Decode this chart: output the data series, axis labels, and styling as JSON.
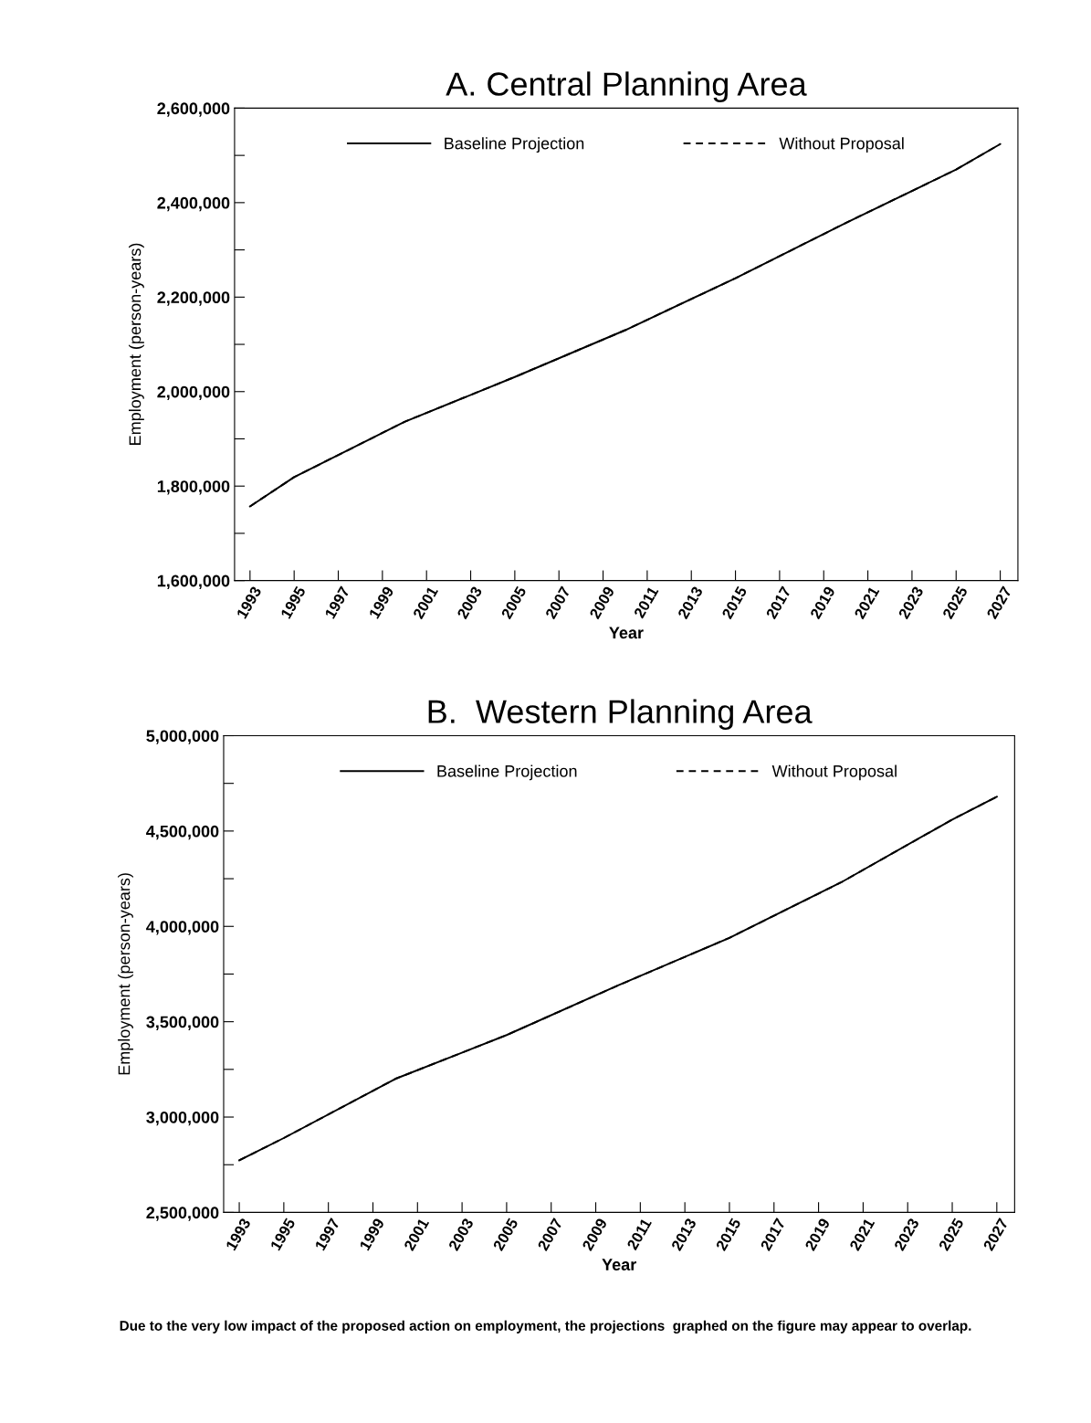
{
  "chart_data": [
    {
      "type": "line",
      "title": "A. Central Planning Area",
      "xlabel": "Year",
      "ylabel": "Employment (person-years)",
      "x": [
        1993,
        1995,
        2000,
        2005,
        2010,
        2015,
        2020,
        2025,
        2027
      ],
      "series": [
        {
          "name": "Baseline Projection",
          "color": "#000000",
          "line_style": "solid",
          "values": [
            1757000,
            1819000,
            1936000,
            2031000,
            2130000,
            2240000,
            2357000,
            2470000,
            2524000
          ]
        },
        {
          "name": "Without Proposal",
          "color": "#000000",
          "line_style": "dashed",
          "values": [
            1757000,
            1819000,
            1936000,
            2031000,
            2130000,
            2240000,
            2357000,
            2470000,
            2524000
          ]
        }
      ],
      "xlim": [
        1992.3,
        2027.8
      ],
      "xticks": [
        1993,
        1995,
        1997,
        1999,
        2001,
        2003,
        2005,
        2007,
        2009,
        2011,
        2013,
        2015,
        2017,
        2019,
        2021,
        2023,
        2025,
        2027
      ],
      "ylim": [
        1600000,
        2600000
      ],
      "yticks": [
        {
          "value": 1600000,
          "label": "1,600,000"
        },
        {
          "value": 1700000,
          "label": null
        },
        {
          "value": 1800000,
          "label": "1,800,000"
        },
        {
          "value": 1900000,
          "label": null
        },
        {
          "value": 2000000,
          "label": "2,000,000"
        },
        {
          "value": 2100000,
          "label": null
        },
        {
          "value": 2200000,
          "label": "2,200,000"
        },
        {
          "value": 2300000,
          "label": null
        },
        {
          "value": 2400000,
          "label": "2,400,000"
        },
        {
          "value": 2500000,
          "label": null
        },
        {
          "value": 2600000,
          "label": "2,600,000"
        }
      ],
      "legend": "top",
      "grid": false
    },
    {
      "type": "line",
      "title": "B.  Western Planning Area",
      "xlabel": "Year",
      "ylabel": "Employment (person-years)",
      "x": [
        1993,
        1995,
        2000,
        2005,
        2010,
        2015,
        2020,
        2025,
        2027
      ],
      "series": [
        {
          "name": "Baseline Projection",
          "color": "#000000",
          "line_style": "solid",
          "values": [
            2773000,
            2890000,
            3200000,
            3430000,
            3690000,
            3940000,
            4230000,
            4560000,
            4680000
          ]
        },
        {
          "name": "Without Proposal",
          "color": "#000000",
          "line_style": "dashed",
          "values": [
            2773000,
            2890000,
            3200000,
            3430000,
            3690000,
            3940000,
            4230000,
            4560000,
            4680000
          ]
        }
      ],
      "xlim": [
        1992.3,
        2027.8
      ],
      "xticks": [
        1993,
        1995,
        1997,
        1999,
        2001,
        2003,
        2005,
        2007,
        2009,
        2011,
        2013,
        2015,
        2017,
        2019,
        2021,
        2023,
        2025,
        2027
      ],
      "ylim": [
        2500000,
        5000000
      ],
      "yticks": [
        {
          "value": 2500000,
          "label": "2,500,000"
        },
        {
          "value": 2750000,
          "label": null
        },
        {
          "value": 3000000,
          "label": "3,000,000"
        },
        {
          "value": 3250000,
          "label": null
        },
        {
          "value": 3500000,
          "label": "3,500,000"
        },
        {
          "value": 3750000,
          "label": null
        },
        {
          "value": 4000000,
          "label": "4,000,000"
        },
        {
          "value": 4250000,
          "label": null
        },
        {
          "value": 4500000,
          "label": "4,500,000"
        },
        {
          "value": 4750000,
          "label": null
        },
        {
          "value": 5000000,
          "label": "5,000,000"
        }
      ],
      "legend": "top",
      "grid": false,
      "annotations": [
        "Due to the very low impact of the proposed action on employment, the projections  graphed on the figure may appear to overlap."
      ]
    }
  ]
}
